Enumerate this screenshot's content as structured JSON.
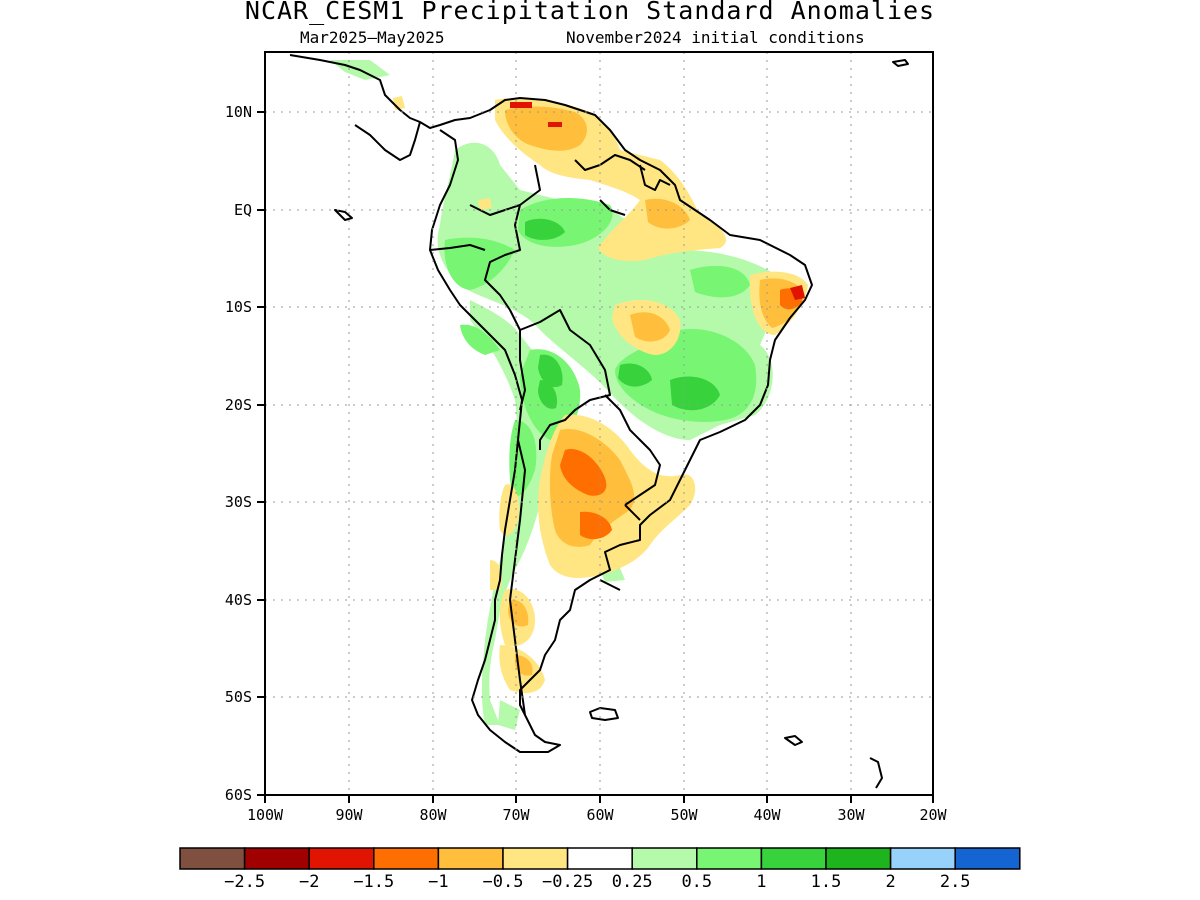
{
  "title": "NCAR_CESM1 Precipitation Standard Anomalies",
  "subtitle_period": "Mar2025–May2025",
  "subtitle_init": "November2024 initial conditions",
  "map": {
    "region": "South America",
    "lon_range": [
      -100,
      -20
    ],
    "lat_range": [
      -60,
      16
    ],
    "grid": true,
    "lon_tick_labels": [
      "100W",
      "90W",
      "80W",
      "70W",
      "60W",
      "50W",
      "40W",
      "30W",
      "20W"
    ],
    "lat_tick_labels": [
      "10N",
      "EQ",
      "10S",
      "20S",
      "30S",
      "40S",
      "50S",
      "60S"
    ]
  },
  "colorbar": {
    "colors": [
      "#7f5040",
      "#a10000",
      "#e01400",
      "#ff6e00",
      "#ffbe3c",
      "#ffe682",
      "#ffffff",
      "#b4faaa",
      "#78f573",
      "#37d23c",
      "#1eb41e",
      "#96d2fa",
      "#1464d2"
    ],
    "labels": [
      "−2.5",
      "−2",
      "−1.5",
      "−1",
      "−0.5",
      "−0.25",
      "0.25",
      "0.5",
      "1",
      "1.5",
      "2",
      "2.5"
    ]
  },
  "colors": {
    "dry_weak": "#ffe682",
    "dry_moderate": "#ffbe3c",
    "dry_strong": "#ff6e00",
    "dry_severe": "#e01400",
    "wet_weak": "#b4faaa",
    "wet_moderate": "#78f573",
    "wet_strong": "#37d23c"
  }
}
